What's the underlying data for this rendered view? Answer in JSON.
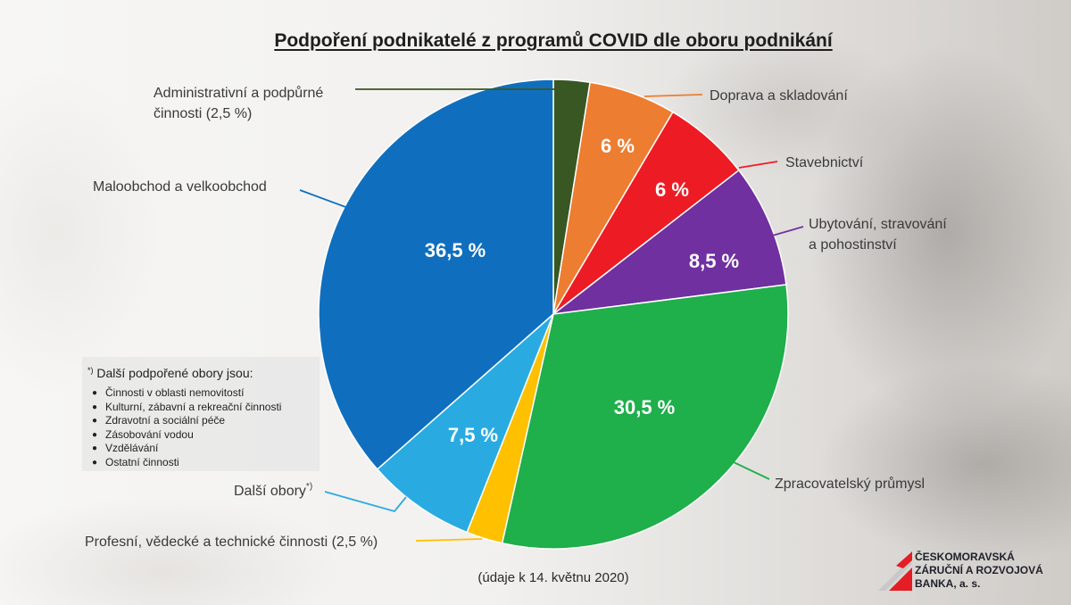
{
  "chart_data": {
    "type": "pie",
    "title": "Podpoření podnikatelé z programů COVID dle oboru podnikání",
    "slices": [
      {
        "label_lines": [
          "Administrativní a podpůrné",
          "činnosti (2,5 %)"
        ],
        "value": 2.5,
        "color": "#385723"
      },
      {
        "label_lines": [
          "Doprava a skladování"
        ],
        "value": 6,
        "value_label": "6 %",
        "color": "#ED7D31"
      },
      {
        "label_lines": [
          "Stavebnictví"
        ],
        "value": 6,
        "value_label": "6 %",
        "color": "#ED1C24"
      },
      {
        "label_lines": [
          "Ubytování, stravování",
          "a pohostinství"
        ],
        "value": 8.5,
        "value_label": "8,5 %",
        "color": "#7030A0"
      },
      {
        "label_lines": [
          "Zpracovatelský průmysl"
        ],
        "value": 30.5,
        "value_label": "30,5 %",
        "color": "#1FAF4B"
      },
      {
        "label_lines": [
          "Profesní, vědecké a technické činnosti (2,5 %)"
        ],
        "value": 2.5,
        "color": "#FFC000"
      },
      {
        "label_lines": [
          "Další obory"
        ],
        "label_marker": "*)",
        "value": 7.5,
        "value_label": "7,5 %",
        "color": "#29ABE2"
      },
      {
        "label_lines": [
          "Maloobchod a velkoobchod"
        ],
        "value": 36.5,
        "value_label": "36,5 %",
        "color": "#0F6FBE"
      }
    ]
  },
  "footnote": {
    "marker": "*)",
    "heading": "Další podpořené obory jsou:",
    "items": [
      "Činnosti v oblasti nemovitostí",
      "Kulturní, zábavní a rekreační činnosti",
      "Zdravotní a sociální péče",
      "Zásobování vodou",
      "Vzdělávání",
      "Ostatní činnosti"
    ]
  },
  "source_note": "(údaje k 14. květnu 2020)",
  "logo": {
    "lines": [
      "ČESKOMORAVSKÁ",
      "ZÁRUČNÍ A ROZVOJOVÁ",
      "BANKA, a. s."
    ],
    "colors": {
      "red": "#E31E24",
      "gray": "#C8C8C8"
    }
  }
}
